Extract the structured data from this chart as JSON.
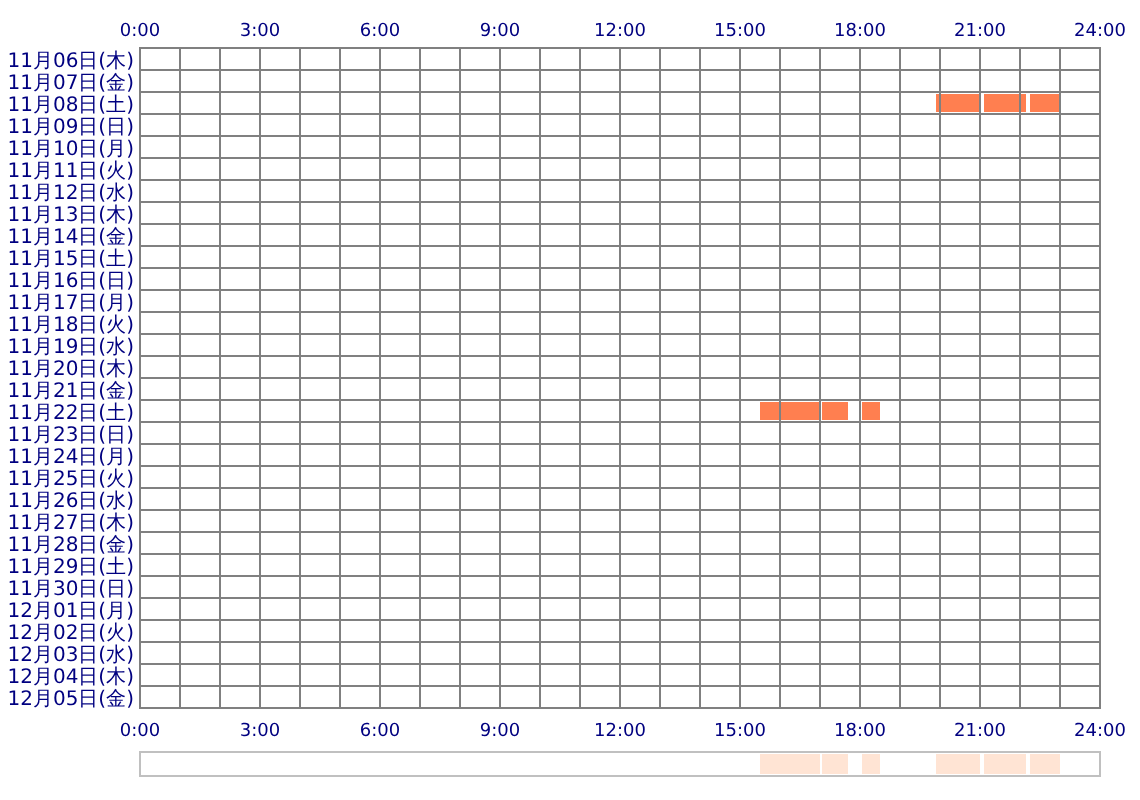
{
  "chart_data": [
    {
      "type": "bar",
      "orientation": "horizontal",
      "grid": true,
      "categories": [
        "11月06日(木)",
        "11月07日(金)",
        "11月08日(土)",
        "11月09日(日)",
        "11月10日(月)",
        "11月11日(火)",
        "11月12日(水)",
        "11月13日(木)",
        "11月14日(金)",
        "11月15日(土)",
        "11月16日(日)",
        "11月17日(月)",
        "11月18日(火)",
        "11月19日(水)",
        "11月20日(木)",
        "11月21日(金)",
        "11月22日(土)",
        "11月23日(日)",
        "11月24日(月)",
        "11月25日(火)",
        "11月26日(水)",
        "11月27日(木)",
        "11月28日(金)",
        "11月29日(土)",
        "11月30日(日)",
        "12月01日(月)",
        "12月02日(火)",
        "12月03日(水)",
        "12月04日(木)",
        "12月05日(金)"
      ],
      "xlim": [
        0,
        24
      ],
      "xticks": [
        {
          "value": 0,
          "label": "0:00"
        },
        {
          "value": 1,
          "label": null
        },
        {
          "value": 2,
          "label": null
        },
        {
          "value": 3,
          "label": "3:00"
        },
        {
          "value": 4,
          "label": null
        },
        {
          "value": 5,
          "label": null
        },
        {
          "value": 6,
          "label": "6:00"
        },
        {
          "value": 7,
          "label": null
        },
        {
          "value": 8,
          "label": null
        },
        {
          "value": 9,
          "label": "9:00"
        },
        {
          "value": 10,
          "label": null
        },
        {
          "value": 11,
          "label": null
        },
        {
          "value": 12,
          "label": "12:00"
        },
        {
          "value": 13,
          "label": null
        },
        {
          "value": 14,
          "label": null
        },
        {
          "value": 15,
          "label": "15:00"
        },
        {
          "value": 16,
          "label": null
        },
        {
          "value": 17,
          "label": null
        },
        {
          "value": 18,
          "label": "18:00"
        },
        {
          "value": 19,
          "label": null
        },
        {
          "value": 20,
          "label": null
        },
        {
          "value": 21,
          "label": "21:00"
        },
        {
          "value": 22,
          "label": null
        },
        {
          "value": 23,
          "label": null
        },
        {
          "value": 24,
          "label": "24:00"
        }
      ],
      "x2lim": [
        0,
        24
      ],
      "x2ticks": [
        {
          "value": 0,
          "label": "0:00"
        },
        {
          "value": 1,
          "label": null
        },
        {
          "value": 2,
          "label": null
        },
        {
          "value": 3,
          "label": "3:00"
        },
        {
          "value": 4,
          "label": null
        },
        {
          "value": 5,
          "label": null
        },
        {
          "value": 6,
          "label": "6:00"
        },
        {
          "value": 7,
          "label": null
        },
        {
          "value": 8,
          "label": null
        },
        {
          "value": 9,
          "label": "9:00"
        },
        {
          "value": 10,
          "label": null
        },
        {
          "value": 11,
          "label": null
        },
        {
          "value": 12,
          "label": "12:00"
        },
        {
          "value": 13,
          "label": null
        },
        {
          "value": 14,
          "label": null
        },
        {
          "value": 15,
          "label": "15:00"
        },
        {
          "value": 16,
          "label": null
        },
        {
          "value": 17,
          "label": null
        },
        {
          "value": 18,
          "label": "18:00"
        },
        {
          "value": 19,
          "label": null
        },
        {
          "value": 20,
          "label": null
        },
        {
          "value": 21,
          "label": "21:00"
        },
        {
          "value": 22,
          "label": null
        },
        {
          "value": 23,
          "label": null
        },
        {
          "value": 24,
          "label": "24:00"
        }
      ],
      "series": [
        {
          "color": "#ff7f50",
          "base": [
            null,
            null,
            19.9,
            null,
            null,
            null,
            null,
            null,
            null,
            null,
            null,
            null,
            null,
            null,
            null,
            null,
            15.5,
            null,
            null,
            null,
            null,
            null,
            null,
            null,
            null,
            null,
            null,
            null,
            null,
            null
          ],
          "values": [
            null,
            null,
            1.1,
            null,
            null,
            null,
            null,
            null,
            null,
            null,
            null,
            null,
            null,
            null,
            null,
            null,
            1.5,
            null,
            null,
            null,
            null,
            null,
            null,
            null,
            null,
            null,
            null,
            null,
            null,
            null
          ]
        },
        {
          "color": "#ff7f50",
          "base": [
            null,
            null,
            21.1,
            null,
            null,
            null,
            null,
            null,
            null,
            null,
            null,
            null,
            null,
            null,
            null,
            null,
            17.05,
            null,
            null,
            null,
            null,
            null,
            null,
            null,
            null,
            null,
            null,
            null,
            null,
            null
          ],
          "values": [
            null,
            null,
            1.05,
            null,
            null,
            null,
            null,
            null,
            null,
            null,
            null,
            null,
            null,
            null,
            null,
            null,
            0.65,
            null,
            null,
            null,
            null,
            null,
            null,
            null,
            null,
            null,
            null,
            null,
            null,
            null
          ]
        },
        {
          "color": "#ff7f50",
          "base": [
            null,
            null,
            22.25,
            null,
            null,
            null,
            null,
            null,
            null,
            null,
            null,
            null,
            null,
            null,
            null,
            null,
            18.05,
            null,
            null,
            null,
            null,
            null,
            null,
            null,
            null,
            null,
            null,
            null,
            null,
            null
          ],
          "values": [
            null,
            null,
            0.75,
            null,
            null,
            null,
            null,
            null,
            null,
            null,
            null,
            null,
            null,
            null,
            null,
            null,
            0.45,
            null,
            null,
            null,
            null,
            null,
            null,
            null,
            null,
            null,
            null,
            null,
            null,
            null
          ]
        }
      ]
    },
    {
      "type": "bar",
      "orientation": "horizontal",
      "categories": [
        null
      ],
      "xlim": [
        0,
        24
      ],
      "series": [
        {
          "color": "#ffe4d4",
          "base": [
            15.5
          ],
          "values": [
            1.5
          ]
        },
        {
          "color": "#ffe4d4",
          "base": [
            17.05
          ],
          "values": [
            0.65
          ]
        },
        {
          "color": "#ffe4d4",
          "base": [
            18.05
          ],
          "values": [
            0.45
          ]
        },
        {
          "color": "#ffe4d4",
          "base": [
            19.9
          ],
          "values": [
            1.1
          ]
        },
        {
          "color": "#ffe4d4",
          "base": [
            21.1
          ],
          "values": [
            1.05
          ]
        },
        {
          "color": "#ffe4d4",
          "base": [
            22.25
          ],
          "values": [
            0.75
          ]
        }
      ]
    }
  ]
}
